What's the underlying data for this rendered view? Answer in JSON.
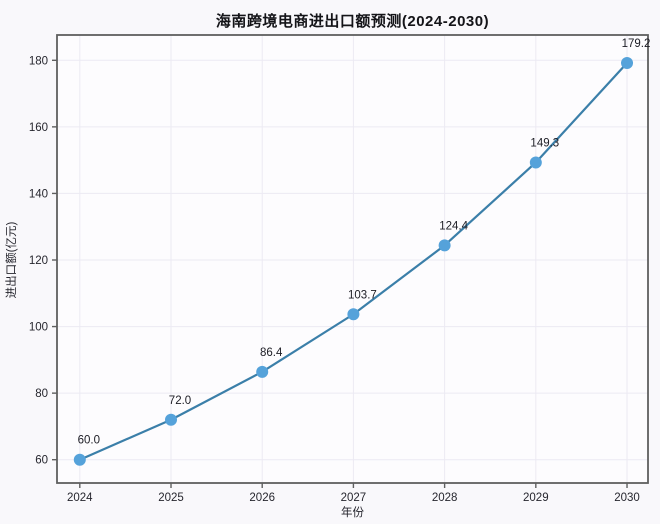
{
  "chart_data": {
    "type": "line",
    "title": "海南跨境电商进出口额预测(2024-2030)",
    "xlabel": "年份",
    "ylabel": "进出口额(亿元)",
    "x": [
      2024,
      2025,
      2026,
      2027,
      2028,
      2029,
      2030
    ],
    "values": [
      60.0,
      72.0,
      86.4,
      103.7,
      124.4,
      149.3,
      179.2
    ],
    "point_labels": [
      "60.0",
      "72.0",
      "86.4",
      "103.7",
      "124.4",
      "149.3",
      "179.2"
    ],
    "x_tick_labels": [
      "2024",
      "2025",
      "2026",
      "2027",
      "2028",
      "2029",
      "2030"
    ],
    "y_ticks": [
      60,
      80,
      100,
      120,
      140,
      160,
      180
    ],
    "xlim": [
      2023.75,
      2030.23
    ],
    "ylim": [
      53.0,
      187.6
    ],
    "grid": true,
    "legend": "none",
    "colors": {
      "line": "#3b7fa9",
      "marker": "#55a2da",
      "grid": "#eceaf3",
      "spine": "#5f5f5f",
      "tick_text": "#26262e",
      "annotation_text": "#1c1c24",
      "plot_bg": "#fdfcfe",
      "figure_bg": "#f9f8fb"
    }
  }
}
